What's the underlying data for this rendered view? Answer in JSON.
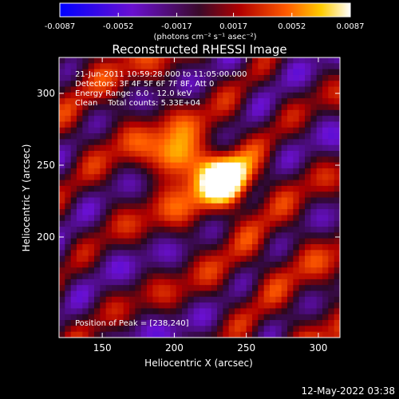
{
  "chart_data": {
    "type": "heatmap",
    "title": "Reconstructed RHESSI Image",
    "xlabel": "Heliocentric X (arcsec)",
    "ylabel": "Heliocentric Y (arcsec)",
    "xlim": [
      120,
      315
    ],
    "ylim": [
      130,
      325
    ],
    "xticks": [
      150,
      200,
      250,
      300
    ],
    "yticks": [
      200,
      250,
      300
    ],
    "colorbar": {
      "min": -0.0087,
      "max": 0.0087,
      "tick_values": [
        -0.0087,
        -0.0052,
        -0.0017,
        0.0017,
        0.0052,
        0.0087
      ],
      "tick_labels": [
        "-0.0087",
        "-0.0052",
        "-0.0017",
        "0.0017",
        "0.0052",
        "0.0087"
      ],
      "unit_label": "(photons cm⁻² s⁻¹ asec⁻²)"
    },
    "annotations": {
      "time_range": "21-Jun-2011 10:59:28.000 to 11:05:00.000",
      "detectors": "Detectors: 3F 4F 5F 6F 7F 8F, Att 0",
      "energy": "Energy Range: 6.0 - 12.0 keV",
      "clean": "Clean    Total counts: 5.33E+04",
      "peak": "Position of Peak = [238,240]"
    },
    "peak": {
      "x": 238,
      "y": 240
    }
  },
  "timestamp": "12-May-2022 03:38"
}
